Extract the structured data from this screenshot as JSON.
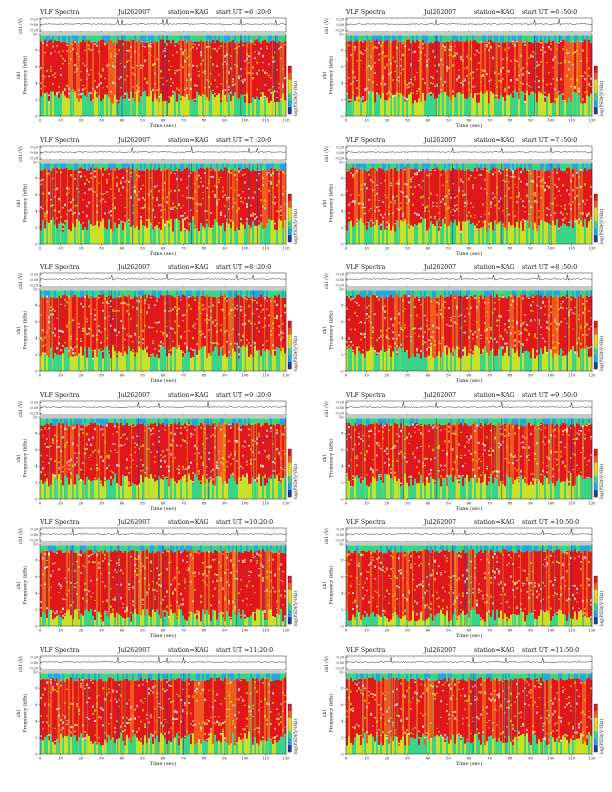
{
  "chart_data": {
    "type": "heatmap",
    "common": {
      "title_prefix": "VLF Spectra",
      "station": "station=KAG",
      "date": "Jul262007",
      "ylabel_ch": "ch1 (V)",
      "ylabel_spec": "ch1\nFrequency (kHz)",
      "xlabel": "Time (sec)",
      "colorbar_label": "log(PSD)(V²/Hz)",
      "ch_yticks": [
        "0.20",
        "0.00",
        "-0.20"
      ],
      "ch_ylim": [
        -0.2,
        0.2
      ],
      "freq_yticks": [
        "10",
        "8",
        "6",
        "4",
        "2",
        "0"
      ],
      "freq_ylim": [
        0,
        10
      ],
      "xticks": [
        "0",
        "10",
        "20",
        "30",
        "40",
        "50",
        "60",
        "70",
        "80",
        "90",
        "100",
        "110",
        "120"
      ],
      "xlim": [
        0,
        120
      ],
      "colormap": [
        "#1c3c9c",
        "#22a8e0",
        "#3ad488",
        "#c9e02a",
        "#f2d818",
        "#f05a20",
        "#e0181c"
      ]
    },
    "panels": [
      {
        "date": "Jul262007",
        "start": "start  UT =6 :20:0",
        "band_lo_khz": 2.0,
        "bursts": [
          38,
          40,
          60,
          62,
          98,
          115
        ]
      },
      {
        "date": "Jul262007",
        "start": "start  UT =6 :50:0",
        "band_lo_khz": 2.0,
        "bursts": [
          44,
          92,
          104
        ]
      },
      {
        "date": "Jul262007",
        "start": "start  UT =7 :20:0",
        "band_lo_khz": 2.0,
        "bursts": [
          45,
          74,
          102,
          106
        ]
      },
      {
        "date": "Jul262007",
        "start": "start  UT =7 :50:0",
        "band_lo_khz": 2.0,
        "bursts": [
          52,
          76,
          100
        ]
      },
      {
        "date": "Jul262007",
        "start": "start  UT =8 :20:0",
        "band_lo_khz": 2.0,
        "bursts": [
          35,
          62,
          96,
          104
        ]
      },
      {
        "date": "Jul262007",
        "start": "start  UT =8 :50:0",
        "band_lo_khz": 2.0,
        "bursts": [
          56,
          72,
          94,
          108
        ]
      },
      {
        "date": "Jul262007",
        "start": "start  UT =9 :20:0",
        "band_lo_khz": 2.0,
        "bursts": [
          48,
          58,
          82
        ]
      },
      {
        "date": "Jul262007",
        "start": "start  UT =9 :50:0",
        "band_lo_khz": 2.0,
        "bursts": [
          28,
          44,
          76,
          110
        ]
      },
      {
        "date": "Jul262007",
        "start": "start  UT =10:20:0",
        "band_lo_khz": 1.0,
        "bursts": [
          16,
          38,
          60,
          96
        ]
      },
      {
        "date": "Jul262007",
        "start": "start  UT =10:50:0",
        "band_lo_khz": 1.0,
        "bursts": [
          52,
          58,
          96,
          110
        ]
      },
      {
        "date": "Jul262007",
        "start": "start  UT =11:20:0",
        "band_lo_khz": 1.5,
        "bursts": [
          38,
          58,
          62,
          70
        ]
      },
      {
        "date": "Jul262007",
        "start": "start  UT =11:50:0",
        "band_lo_khz": 1.5,
        "bursts": [
          22,
          62,
          78,
          96
        ]
      }
    ]
  }
}
